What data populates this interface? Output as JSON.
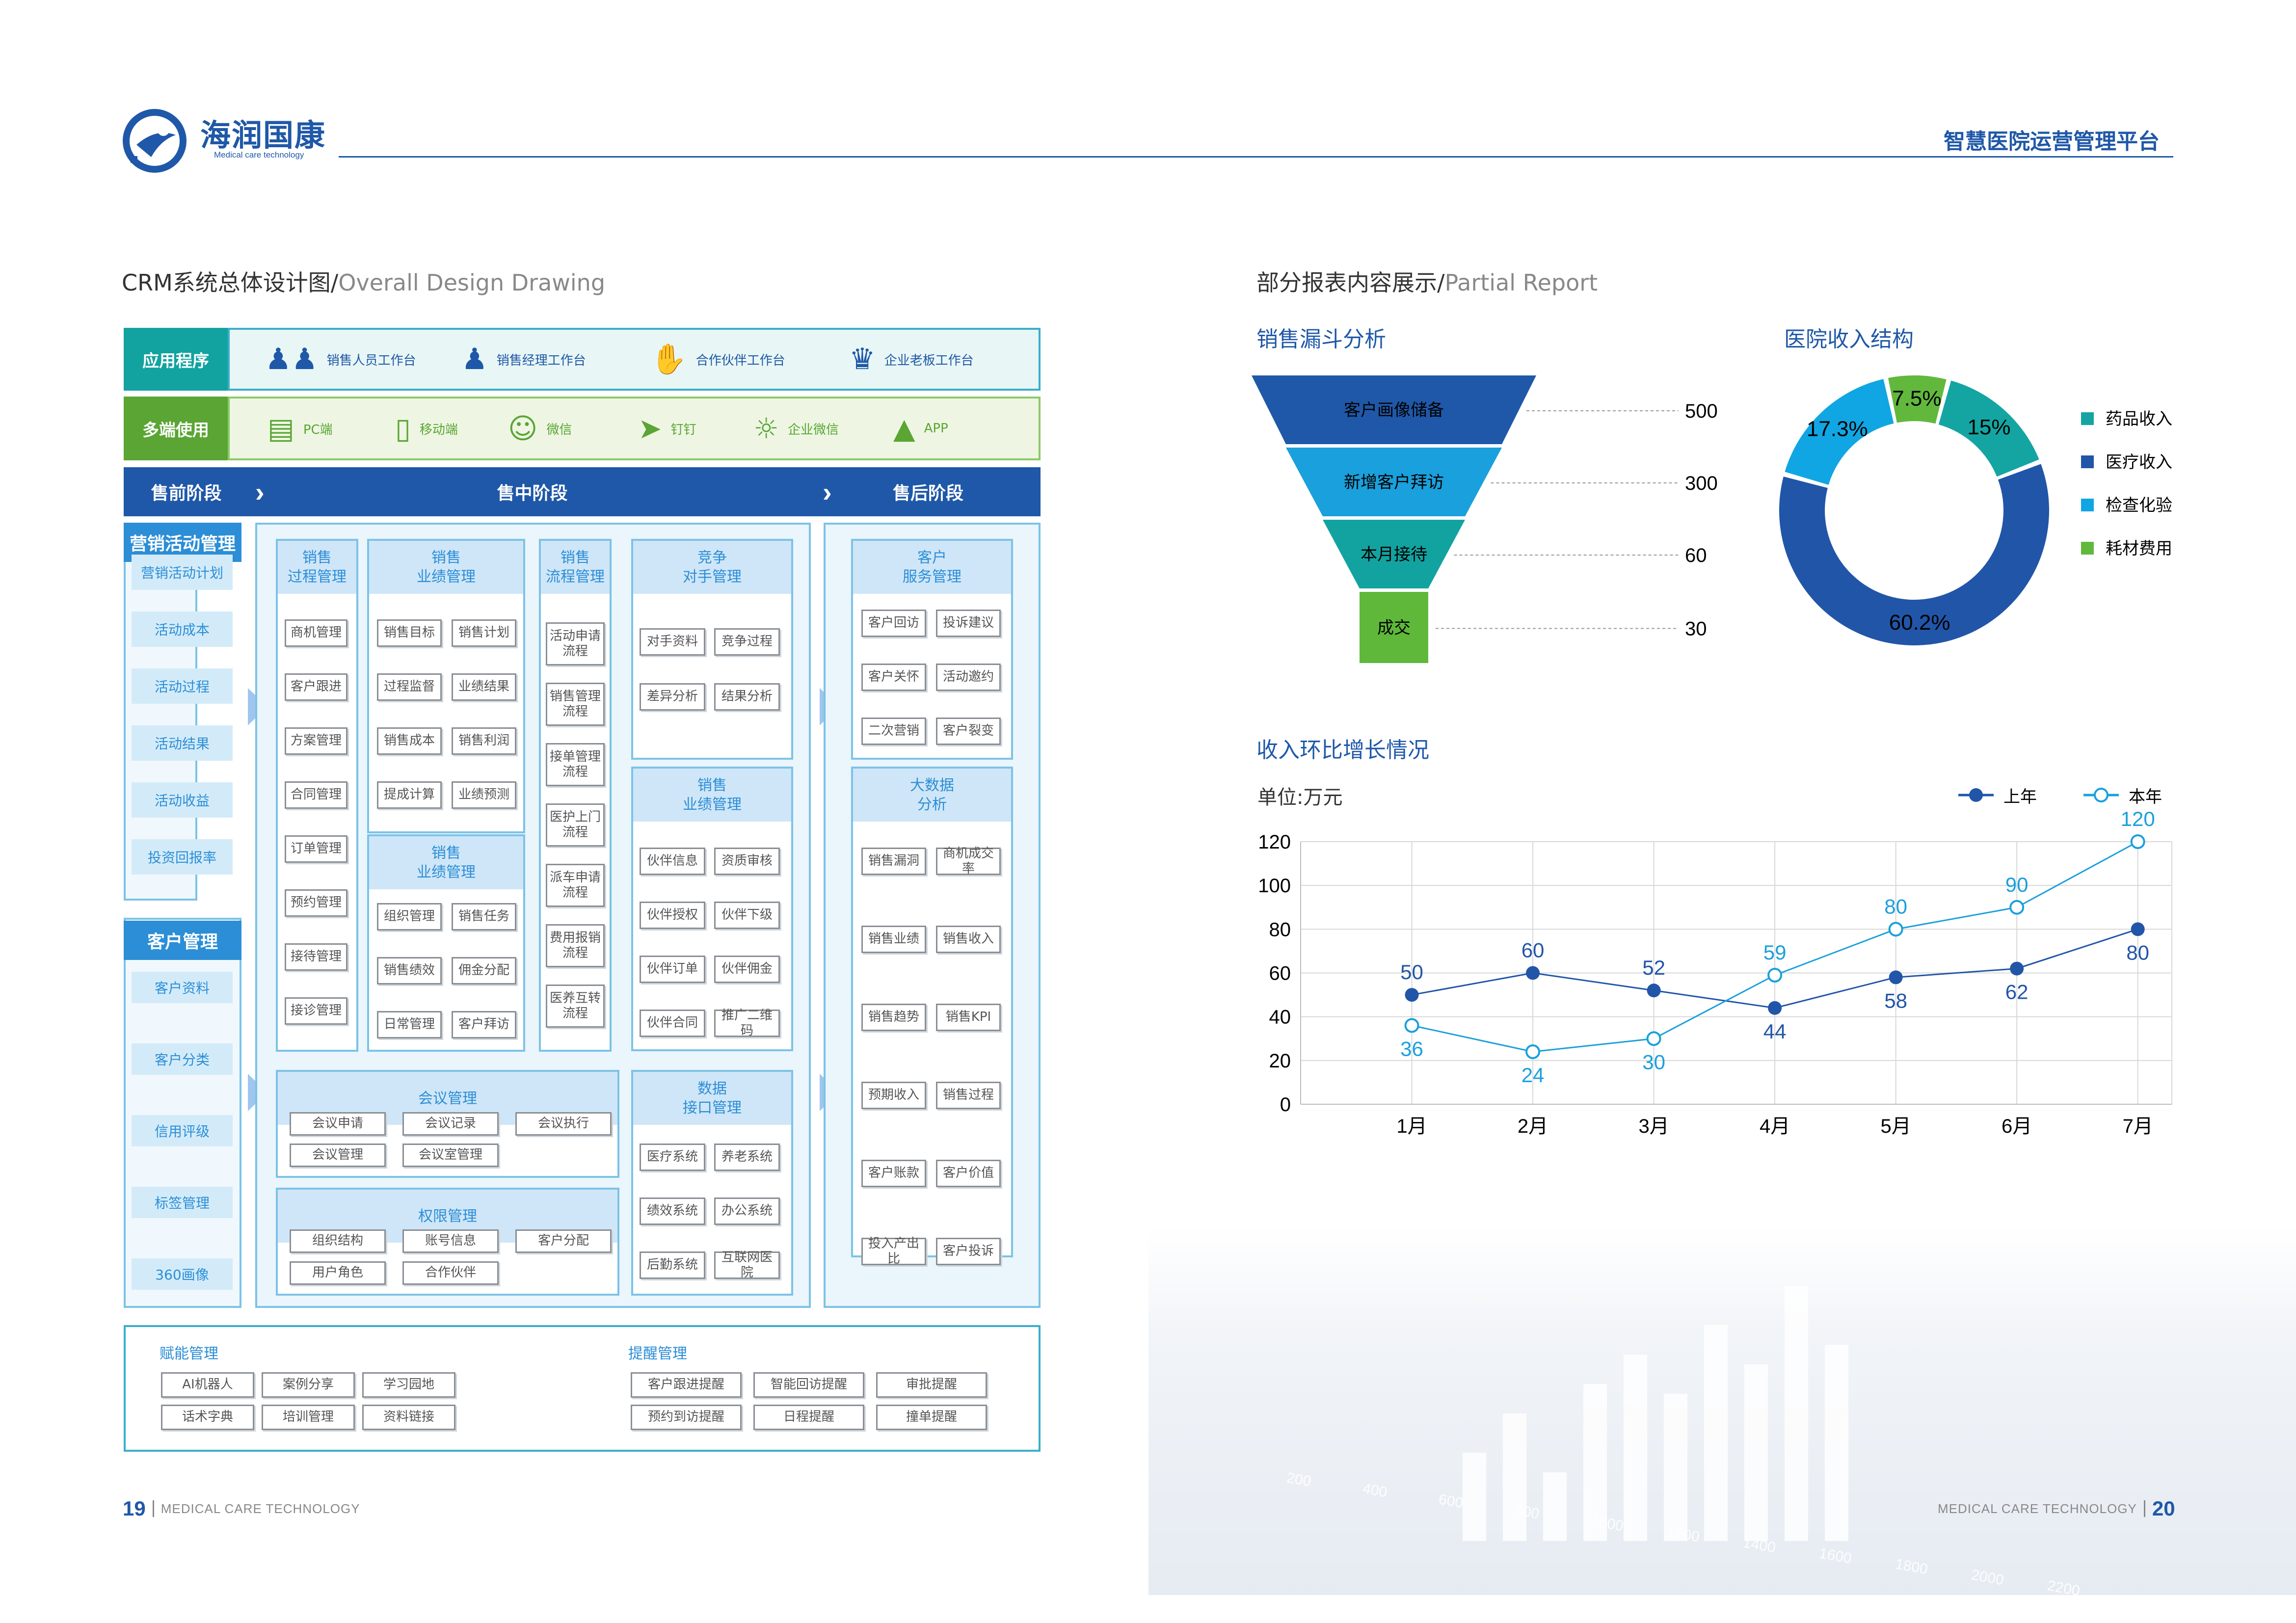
{
  "header": {
    "brand_cn": "海润国康",
    "brand_en": "Medical care technology",
    "right_title": "智慧医院运营管理平台"
  },
  "left": {
    "title_cn": "CRM系统总体设计图/",
    "title_en": "Overall Design Drawing",
    "apps": {
      "label": "应用程序",
      "items": [
        {
          "label": "销售人员工作台",
          "icon": "users-icon"
        },
        {
          "label": "销售经理工作台",
          "icon": "manager-icon"
        },
        {
          "label": "合作伙伴工作台",
          "icon": "handshake-icon"
        },
        {
          "label": "企业老板工作台",
          "icon": "boss-icon"
        }
      ]
    },
    "multi": {
      "label": "多端使用",
      "items": [
        {
          "label": "PC端",
          "icon": "pc-icon"
        },
        {
          "label": "移动端",
          "icon": "mobile-icon"
        },
        {
          "label": "微信",
          "icon": "wechat-icon"
        },
        {
          "label": "钉钉",
          "icon": "dingtalk-icon"
        },
        {
          "label": "企业微信",
          "icon": "wecom-icon"
        },
        {
          "label": "APP",
          "icon": "app-icon"
        }
      ]
    },
    "stages": {
      "pre": "售前阶段",
      "mid": "售中阶段",
      "post": "售后阶段"
    },
    "marketing": {
      "head": "营销活动管理",
      "items": [
        "营销活动计划",
        "活动成本",
        "活动过程",
        "活动结果",
        "活动收益",
        "投资回报率"
      ]
    },
    "customer": {
      "head": "客户管理",
      "items": [
        "客户资料",
        "客户分类",
        "信用评级",
        "标签管理",
        "360画像"
      ]
    },
    "mid_cols": {
      "process": {
        "head": "销售\n过程管理",
        "items": [
          "商机管理",
          "客户跟进",
          "方案管理",
          "合同管理",
          "订单管理",
          "预约管理",
          "接待管理",
          "接诊管理"
        ]
      },
      "perf1": {
        "head": "销售\n业绩管理",
        "items": [
          "销售目标",
          "销售计划",
          "过程监督",
          "业绩结果",
          "销售成本",
          "销售利润",
          "提成计算",
          "业绩预测"
        ]
      },
      "perf2": {
        "head": "销售\n业绩管理",
        "items": [
          "组织管理",
          "销售任务",
          "销售绩效",
          "佣金分配",
          "日常管理",
          "客户拜访"
        ]
      },
      "flow": {
        "head": "销售\n流程管理",
        "items": [
          "活动申请\n流程",
          "销售管理\n流程",
          "接单管理\n流程",
          "医护上门\n流程",
          "派车申请\n流程",
          "费用报销\n流程",
          "医养互转\n流程"
        ]
      },
      "compete": {
        "head": "竞争\n对手管理",
        "items": [
          "对手资料",
          "竞争过程",
          "差异分析",
          "结果分析"
        ]
      },
      "perf3": {
        "head": "销售\n业绩管理",
        "items": [
          "伙伴信息",
          "资质审核",
          "伙伴授权",
          "伙伴下级",
          "伙伴订单",
          "伙伴佣金",
          "伙伴合同",
          "推广二维码"
        ]
      },
      "data": {
        "head": "数据\n接口管理",
        "items": [
          "医疗系统",
          "养老系统",
          "绩效系统",
          "办公系统",
          "后勤系统",
          "互联网医院"
        ]
      },
      "meeting": {
        "head": "会议管理",
        "items": [
          "会议申请",
          "会议记录",
          "会议执行",
          "会议管理",
          "会议室管理"
        ]
      },
      "perm": {
        "head": "权限管理",
        "items": [
          "组织结构",
          "账号信息",
          "客户分配",
          "用户角色",
          "合作伙伴"
        ]
      }
    },
    "post_cols": {
      "service": {
        "head": "客户\n服务管理",
        "items": [
          "客户回访",
          "投诉建议",
          "客户关怀",
          "活动邀约",
          "二次营销",
          "客户裂变"
        ]
      },
      "bigdata": {
        "head": "大数据\n分析",
        "items": [
          "销售漏洞",
          "商机成交率",
          "销售业绩",
          "销售收入",
          "销售趋势",
          "销售KPI",
          "预期收入",
          "销售过程",
          "客户账款",
          "客户价值",
          "投入产出比",
          "客户投诉"
        ]
      }
    },
    "bottom": {
      "enable_label": "赋能管理",
      "enable_items": [
        "AI机器人",
        "案例分享",
        "学习园地",
        "话术字典",
        "培训管理",
        "资料链接"
      ],
      "remind_label": "提醒管理",
      "remind_items": [
        "客户跟进提醒",
        "智能回访提醒",
        "审批提醒",
        "预约到访提醒",
        "日程提醒",
        "撞单提醒"
      ]
    }
  },
  "right": {
    "title_cn": "部分报表内容展示/",
    "title_en": "Partial Report",
    "funnel_title": "销售漏斗分析",
    "pie_title": "医院收入结构",
    "line_title": "收入环比增长情况",
    "unit": "单位:万元"
  },
  "chart_data": [
    {
      "type": "funnel",
      "categories": [
        "客户画像储备",
        "新增客户拜访",
        "本月接待",
        "成交"
      ],
      "values": [
        500,
        300,
        60,
        30
      ],
      "colors": [
        "#1f58a8",
        "#1aa0dc",
        "#12a3a0",
        "#5fb83a"
      ]
    },
    {
      "type": "pie",
      "donut": true,
      "categories": [
        "药品收入",
        "医疗收入",
        "检查化验",
        "耗材费用"
      ],
      "values": [
        15,
        60.2,
        17.3,
        7.5
      ],
      "labels": [
        "15%",
        "60.2%",
        "17.3%",
        "7.5%"
      ],
      "colors": [
        "#14a5a2",
        "#2155a8",
        "#10a6e3",
        "#61b83d"
      ],
      "legend": "right"
    },
    {
      "type": "line",
      "categories": [
        "1月",
        "2月",
        "3月",
        "4月",
        "5月",
        "6月",
        "7月"
      ],
      "series": [
        {
          "name": "上年",
          "values": [
            50,
            60,
            52,
            44,
            58,
            62,
            80
          ],
          "color": "#2155a8",
          "marker": "filled"
        },
        {
          "name": "本年",
          "values": [
            36,
            24,
            30,
            59,
            80,
            90,
            120
          ],
          "color": "#1aa0dc",
          "marker": "hollow"
        }
      ],
      "ylim": [
        0,
        120
      ],
      "yticks": [
        "0",
        "20",
        "40",
        "60",
        "80",
        "100",
        "120"
      ],
      "grid": true,
      "legend": "top-right"
    }
  ],
  "bg_numbers": [
    "200",
    "400",
    "600",
    "800",
    "1000",
    "1200",
    "1400",
    "1600",
    "1800",
    "2000",
    "2200"
  ],
  "footer": {
    "left_num": "19",
    "left_text": "MEDICAL CARE TECHNOLOGY",
    "right_text": "MEDICAL CARE TECHNOLOGY",
    "right_num": "20"
  }
}
